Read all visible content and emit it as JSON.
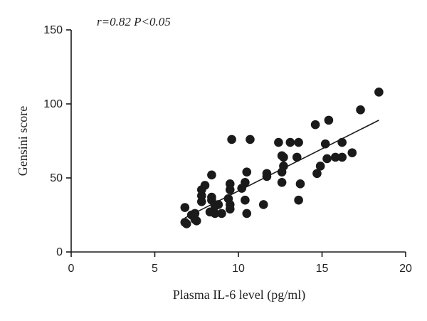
{
  "chart_data": {
    "type": "scatter",
    "annotation": "r=0.82 P<0.05",
    "xlabel": "Plasma IL-6 level (pg/ml)",
    "ylabel": "Gensini score",
    "xlim": [
      0,
      20
    ],
    "ylim": [
      0,
      150
    ],
    "x_ticks": [
      "0",
      "5",
      "10",
      "15",
      "20"
    ],
    "y_ticks": [
      "0",
      "50",
      "100",
      "150"
    ],
    "grid": false,
    "point_color": "#1a1a1a",
    "fit_line": {
      "x": [
        6.8,
        18.4
      ],
      "y": [
        23,
        89
      ]
    },
    "points": [
      {
        "x": 6.8,
        "y": 30
      },
      {
        "x": 6.8,
        "y": 20
      },
      {
        "x": 6.9,
        "y": 19
      },
      {
        "x": 7.2,
        "y": 25
      },
      {
        "x": 7.4,
        "y": 22
      },
      {
        "x": 7.5,
        "y": 21
      },
      {
        "x": 7.4,
        "y": 26
      },
      {
        "x": 7.8,
        "y": 42
      },
      {
        "x": 7.8,
        "y": 38
      },
      {
        "x": 7.8,
        "y": 34
      },
      {
        "x": 8.0,
        "y": 45
      },
      {
        "x": 8.4,
        "y": 52
      },
      {
        "x": 8.4,
        "y": 37
      },
      {
        "x": 8.4,
        "y": 35
      },
      {
        "x": 8.3,
        "y": 27
      },
      {
        "x": 8.6,
        "y": 31
      },
      {
        "x": 8.8,
        "y": 32
      },
      {
        "x": 8.6,
        "y": 26
      },
      {
        "x": 9.0,
        "y": 26
      },
      {
        "x": 9.4,
        "y": 36
      },
      {
        "x": 9.5,
        "y": 42
      },
      {
        "x": 9.5,
        "y": 46
      },
      {
        "x": 9.5,
        "y": 32
      },
      {
        "x": 9.5,
        "y": 29
      },
      {
        "x": 9.6,
        "y": 76
      },
      {
        "x": 10.2,
        "y": 43
      },
      {
        "x": 10.4,
        "y": 47
      },
      {
        "x": 10.5,
        "y": 54
      },
      {
        "x": 10.4,
        "y": 35
      },
      {
        "x": 10.5,
        "y": 26
      },
      {
        "x": 10.7,
        "y": 76
      },
      {
        "x": 11.5,
        "y": 32
      },
      {
        "x": 11.7,
        "y": 53
      },
      {
        "x": 11.7,
        "y": 51
      },
      {
        "x": 12.4,
        "y": 74
      },
      {
        "x": 12.6,
        "y": 65
      },
      {
        "x": 12.7,
        "y": 64
      },
      {
        "x": 12.6,
        "y": 54
      },
      {
        "x": 12.7,
        "y": 58
      },
      {
        "x": 12.6,
        "y": 47
      },
      {
        "x": 13.1,
        "y": 74
      },
      {
        "x": 13.5,
        "y": 64
      },
      {
        "x": 13.6,
        "y": 74
      },
      {
        "x": 13.7,
        "y": 46
      },
      {
        "x": 13.6,
        "y": 35
      },
      {
        "x": 14.6,
        "y": 86
      },
      {
        "x": 14.7,
        "y": 53
      },
      {
        "x": 14.9,
        "y": 58
      },
      {
        "x": 15.2,
        "y": 73
      },
      {
        "x": 15.3,
        "y": 63
      },
      {
        "x": 15.4,
        "y": 89
      },
      {
        "x": 15.8,
        "y": 64
      },
      {
        "x": 16.2,
        "y": 64
      },
      {
        "x": 16.2,
        "y": 74
      },
      {
        "x": 16.8,
        "y": 67
      },
      {
        "x": 17.3,
        "y": 96
      },
      {
        "x": 18.4,
        "y": 108
      }
    ]
  }
}
